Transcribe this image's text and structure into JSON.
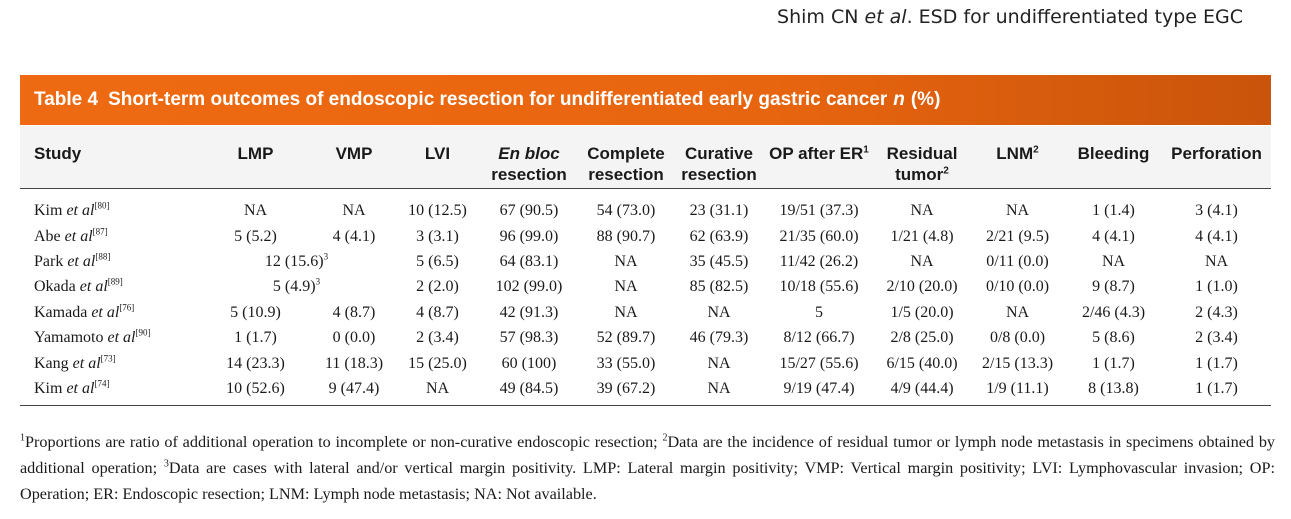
{
  "running_head": {
    "author": "Shim CN",
    "etal": "et al",
    "rest": ". ESD for undifferentiated type EGC"
  },
  "table_title": {
    "number": "Table 4",
    "text": "Short-term outcomes of endoscopic resection for undifferentiated early gastric cancer",
    "n": "n",
    "unit": "(%)"
  },
  "columns": {
    "study": "Study",
    "lmp": "LMP",
    "vmp": "VMP",
    "lvi": "LVI",
    "en_bloc_1": "En bloc",
    "en_bloc_2": "resection",
    "complete_1": "Complete",
    "complete_2": "resection",
    "curative_1": "Curative",
    "curative_2": "resection",
    "op_after_er": "OP after ER",
    "op_after_er_sup": "1",
    "residual_1": "Residual",
    "residual_2": "tumor",
    "residual_sup": "2",
    "lnm": "LNM",
    "lnm_sup": "2",
    "bleeding": "Bleeding",
    "perforation": "Perforation"
  },
  "rows": [
    {
      "name": "Kim",
      "etal": "et al",
      "ref": "[80]",
      "lmp": "NA",
      "vmp": "NA",
      "lvi": "10 (12.5)",
      "en_bloc": "67 (90.5)",
      "complete": "54 (73.0)",
      "curative": "23 (31.1)",
      "op_after_er": "19/51 (37.3)",
      "residual": "NA",
      "lnm": "NA",
      "bleeding": "1 (1.4)",
      "perforation": "3 (4.1)"
    },
    {
      "name": "Abe",
      "etal": "et al",
      "ref": "[87]",
      "lmp": "5 (5.2)",
      "vmp": "4 (4.1)",
      "lvi": "3 (3.1)",
      "en_bloc": "96 (99.0)",
      "complete": "88 (90.7)",
      "curative": "62 (63.9)",
      "op_after_er": "21/35 (60.0)",
      "residual": "1/21 (4.8)",
      "lnm": "2/21 (9.5)",
      "bleeding": "4 (4.1)",
      "perforation": "4 (4.1)"
    },
    {
      "name": "Park",
      "etal": "et al",
      "ref": "[88]",
      "merged_margin": "12 (15.6)",
      "merged_sup": "3",
      "lvi": "5 (6.5)",
      "en_bloc": "64 (83.1)",
      "complete": "NA",
      "curative": "35 (45.5)",
      "op_after_er": "11/42 (26.2)",
      "residual": "NA",
      "lnm": "0/11 (0.0)",
      "bleeding": "NA",
      "perforation": "NA"
    },
    {
      "name": "Okada",
      "etal": "et al",
      "ref": "[89]",
      "merged_margin": "5 (4.9)",
      "merged_sup": "3",
      "lvi": "2 (2.0)",
      "en_bloc": "102 (99.0)",
      "complete": "NA",
      "curative": "85 (82.5)",
      "op_after_er": "10/18 (55.6)",
      "residual": "2/10 (20.0)",
      "lnm": "0/10 (0.0)",
      "bleeding": "9 (8.7)",
      "perforation": "1 (1.0)"
    },
    {
      "name": "Kamada",
      "etal": "et al",
      "ref": "[76]",
      "lmp": "5 (10.9)",
      "vmp": "4 (8.7)",
      "lvi": "4 (8.7)",
      "en_bloc": "42 (91.3)",
      "complete": "NA",
      "curative": "NA",
      "op_after_er": "5",
      "residual": "1/5 (20.0)",
      "lnm": "NA",
      "bleeding": "2/46 (4.3)",
      "perforation": "2 (4.3)"
    },
    {
      "name": "Yamamoto",
      "etal": "et al",
      "ref": "[90]",
      "lmp": "1 (1.7)",
      "vmp": "0 (0.0)",
      "lvi": "2 (3.4)",
      "en_bloc": "57 (98.3)",
      "complete": "52 (89.7)",
      "curative": "46 (79.3)",
      "op_after_er": "8/12 (66.7)",
      "residual": "2/8 (25.0)",
      "lnm": "0/8 (0.0)",
      "bleeding": "5 (8.6)",
      "perforation": "2 (3.4)"
    },
    {
      "name": "Kang",
      "etal": "et al",
      "ref": "[73]",
      "lmp": "14 (23.3)",
      "vmp": "11 (18.3)",
      "lvi": "15 (25.0)",
      "en_bloc": "60 (100)",
      "complete": "33 (55.0)",
      "curative": "NA",
      "op_after_er": "15/27 (55.6)",
      "residual": "6/15 (40.0)",
      "lnm": "2/15 (13.3)",
      "bleeding": "1 (1.7)",
      "perforation": "1 (1.7)"
    },
    {
      "name": "Kim",
      "etal": "et al",
      "ref": "[74]",
      "lmp": "10 (52.6)",
      "vmp": "9 (47.4)",
      "lvi": "NA",
      "en_bloc": "49 (84.5)",
      "complete": "39 (67.2)",
      "curative": "NA",
      "op_after_er": "9/19 (47.4)",
      "residual": "4/9 (44.4)",
      "lnm": "1/9 (11.1)",
      "bleeding": "8 (13.8)",
      "perforation": "1 (1.7)"
    }
  ],
  "footnote": {
    "n1": "1",
    "t1": "Proportions are ratio of additional operation to incomplete or non-curative endoscopic resection; ",
    "n2": "2",
    "t2": "Data are the incidence of residual tumor or lymph node metastasis in specimens obtained by additional operation; ",
    "n3": "3",
    "t3": "Data are cases with lateral and/or vertical margin positivity. LMP: Lateral margin positivity; VMP: Vertical margin positivity; LVI: Lymphovascular invasion; OP: Operation; ER: Endoscopic resection; LNM: Lymph node metastasis; NA: Not available."
  }
}
